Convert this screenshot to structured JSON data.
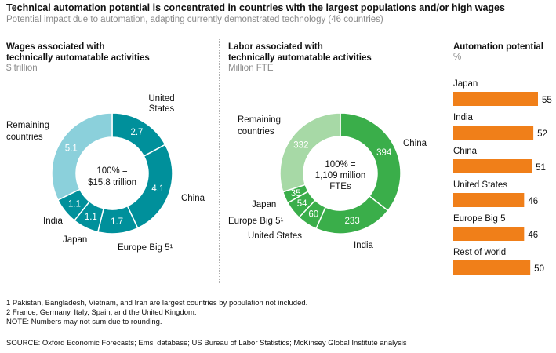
{
  "header": {
    "title": "Technical automation potential is concentrated in countries with the largest populations and/or high wages",
    "subtitle": "Potential impact due to automation, adapting currently demonstrated technology (46 countries)"
  },
  "colors": {
    "wages_dark": "#00909b",
    "wages_light": "#8bd0db",
    "labor_dark": "#3aae4a",
    "labor_light": "#a7d9a6",
    "bar": "#f07f19"
  },
  "chart_data": [
    {
      "type": "pie",
      "title_line1": "Wages associated with",
      "title_line2": "technically automatable activities",
      "unit": "$ trillion",
      "center_line1": "100% =",
      "center_line2": "$15.8 trillion",
      "slices": [
        {
          "name": "United States",
          "value": 2.7,
          "label": "2.7",
          "name_lines": [
            "United",
            "States"
          ]
        },
        {
          "name": "China",
          "value": 4.1,
          "label": "4.1",
          "name_lines": [
            "China"
          ]
        },
        {
          "name": "Europe Big 5",
          "value": 1.7,
          "label": "1.7",
          "name_lines": [
            "Europe Big 5¹"
          ]
        },
        {
          "name": "Japan",
          "value": 1.1,
          "label": "1.1",
          "name_lines": [
            "Japan"
          ]
        },
        {
          "name": "India",
          "value": 1.1,
          "label": "1.1",
          "name_lines": [
            "India"
          ]
        },
        {
          "name": "Remaining countries",
          "value": 5.1,
          "label": "5.1",
          "name_lines": [
            "Remaining",
            "countries"
          ]
        }
      ]
    },
    {
      "type": "pie",
      "title_line1": "Labor associated with",
      "title_line2": "technically automatable activities",
      "unit": "Million FTE",
      "center_line1": "100% =",
      "center_line2": "1,109 million",
      "center_line3": "FTEs",
      "slices": [
        {
          "name": "China",
          "value": 394,
          "label": "394",
          "name_lines": [
            "China"
          ]
        },
        {
          "name": "India",
          "value": 233,
          "label": "233",
          "name_lines": [
            "India"
          ]
        },
        {
          "name": "United States",
          "value": 60,
          "label": "60",
          "name_lines": [
            "United States"
          ]
        },
        {
          "name": "Europe Big 5",
          "value": 54,
          "label": "54",
          "name_lines": [
            "Europe Big 5¹"
          ]
        },
        {
          "name": "Japan",
          "value": 35,
          "label": "35",
          "name_lines": [
            "Japan"
          ]
        },
        {
          "name": "Remaining countries",
          "value": 332,
          "label": "332",
          "name_lines": [
            "Remaining",
            "countries"
          ]
        }
      ]
    },
    {
      "type": "bar",
      "orientation": "horizontal",
      "title": "Automation potential",
      "unit": "%",
      "categories": [
        "Japan",
        "India",
        "China",
        "United States",
        "Europe Big 5",
        "Rest of world"
      ],
      "values": [
        55,
        52,
        51,
        46,
        46,
        50
      ],
      "xlim": [
        0,
        55
      ]
    }
  ],
  "footnotes": {
    "note1": "1  Pakistan, Bangladesh, Vietnam, and Iran are largest countries by population not included.",
    "note2": "2  France, Germany, Italy, Spain, and the United Kingdom.",
    "note3": "NOTE: Numbers may not sum due to rounding.",
    "source": "SOURCE:  Oxford Economic Forecasts; Emsi database; US Bureau of Labor Statistics; McKinsey Global Institute analysis"
  }
}
